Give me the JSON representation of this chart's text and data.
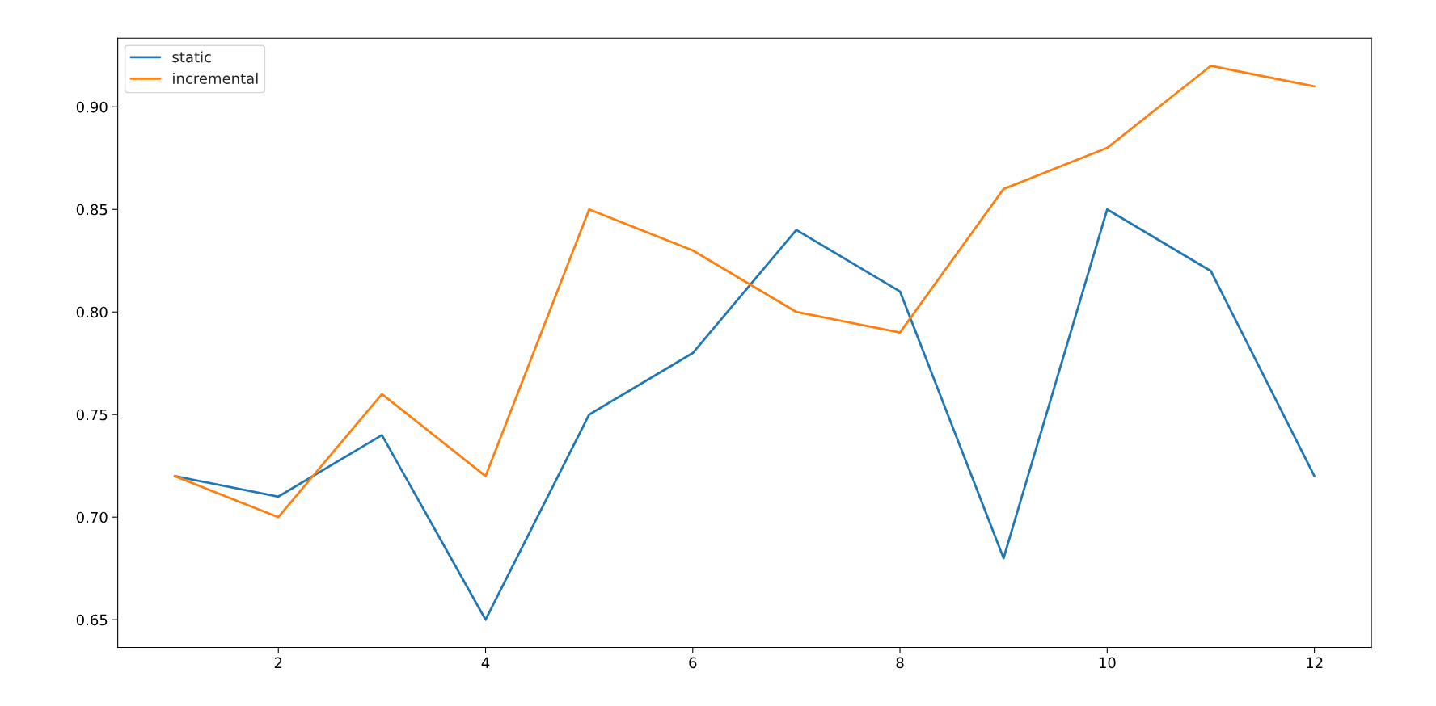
{
  "chart_data": {
    "type": "line",
    "x": [
      1,
      2,
      3,
      4,
      5,
      6,
      7,
      8,
      9,
      10,
      11,
      12
    ],
    "series": [
      {
        "name": "static",
        "color": "#1f77b4",
        "values": [
          0.72,
          0.71,
          0.74,
          0.65,
          0.75,
          0.78,
          0.84,
          0.81,
          0.68,
          0.85,
          0.82,
          0.72
        ]
      },
      {
        "name": "incremental",
        "color": "#ff7f0e",
        "values": [
          0.72,
          0.7,
          0.76,
          0.72,
          0.85,
          0.83,
          0.8,
          0.79,
          0.86,
          0.88,
          0.92,
          0.91
        ]
      }
    ],
    "xlim": [
      0.45,
      12.55
    ],
    "xticks": [
      2,
      4,
      6,
      8,
      10,
      12
    ],
    "ylim": [
      0.6365,
      0.9335
    ],
    "yticks": [
      {
        "value": 0.65,
        "label": "0.65"
      },
      {
        "value": 0.7,
        "label": "0.70"
      },
      {
        "value": 0.75,
        "label": "0.75"
      },
      {
        "value": 0.8,
        "label": "0.80"
      },
      {
        "value": 0.85,
        "label": "0.85"
      },
      {
        "value": 0.9,
        "label": "0.90"
      }
    ],
    "grid": false,
    "legend": "top left",
    "marker": "none",
    "line_style": "solid"
  }
}
